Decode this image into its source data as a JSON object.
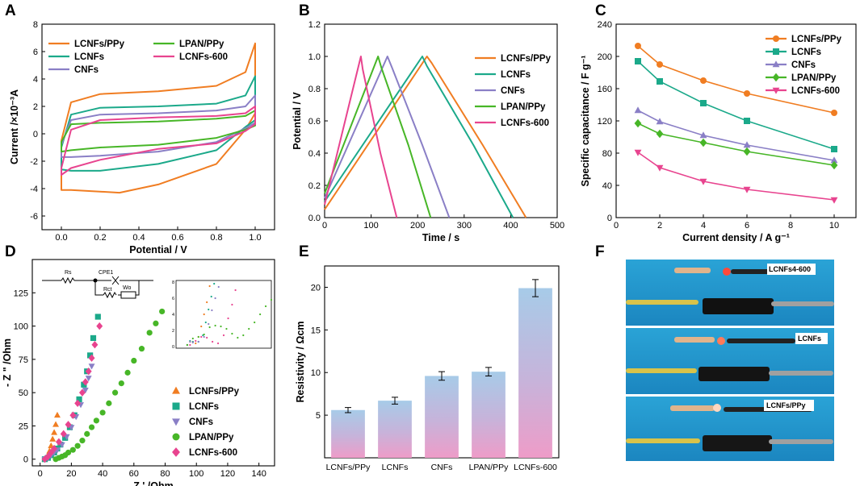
{
  "panels": {
    "A": {
      "label": "A"
    },
    "B": {
      "label": "B"
    },
    "C": {
      "label": "C"
    },
    "D": {
      "label": "D"
    },
    "E": {
      "label": "E"
    },
    "F": {
      "label": "F"
    }
  },
  "colors": {
    "LCNFs/PPy": "#f07d22",
    "LCNFs": "#1ba98a",
    "CNFs": "#8a7fc6",
    "LPAN/PPy": "#47b627",
    "LCNFs-600": "#e8448f"
  },
  "chart_data": [
    {
      "id": "A",
      "type": "line",
      "xlabel": "Potential / V",
      "ylabel": "Current /×10⁻³A",
      "xlim": [
        -0.1,
        1.1
      ],
      "ylim": [
        -7,
        8
      ],
      "xticks": [
        "0.0",
        "0.2",
        "0.4",
        "0.6",
        "0.8",
        "1.0"
      ],
      "yticks": [
        "-6",
        "-4",
        "-2",
        "0",
        "2",
        "4",
        "6",
        "8"
      ],
      "legend": [
        "LCNFs/PPy",
        "LPAN/PPy",
        "LCNFs",
        "LCNFs-600",
        "CNFs"
      ],
      "series": [
        {
          "name": "LCNFs/PPy",
          "upper": [
            [
              0,
              -0.5
            ],
            [
              0.05,
              2.3
            ],
            [
              0.2,
              2.9
            ],
            [
              0.5,
              3.1
            ],
            [
              0.8,
              3.5
            ],
            [
              0.95,
              4.5
            ],
            [
              1.0,
              6.6
            ]
          ],
          "lower": [
            [
              1.0,
              1.5
            ],
            [
              0.95,
              0.3
            ],
            [
              0.8,
              -2.2
            ],
            [
              0.5,
              -3.7
            ],
            [
              0.3,
              -4.3
            ],
            [
              0.05,
              -4.1
            ],
            [
              0,
              -4.1
            ]
          ]
        },
        {
          "name": "LCNFs",
          "upper": [
            [
              0,
              -1.0
            ],
            [
              0.05,
              1.4
            ],
            [
              0.2,
              1.9
            ],
            [
              0.5,
              2.0
            ],
            [
              0.8,
              2.2
            ],
            [
              0.95,
              2.8
            ],
            [
              1.0,
              4.2
            ]
          ],
          "lower": [
            [
              1.0,
              1.0
            ],
            [
              0.95,
              0.5
            ],
            [
              0.8,
              -1.2
            ],
            [
              0.5,
              -2.2
            ],
            [
              0.2,
              -2.7
            ],
            [
              0.05,
              -2.7
            ],
            [
              0,
              -2.6
            ]
          ]
        },
        {
          "name": "CNFs",
          "upper": [
            [
              0,
              -0.8
            ],
            [
              0.05,
              1.0
            ],
            [
              0.2,
              1.4
            ],
            [
              0.5,
              1.5
            ],
            [
              0.8,
              1.7
            ],
            [
              0.95,
              2.0
            ],
            [
              1.0,
              2.8
            ]
          ],
          "lower": [
            [
              1.0,
              0.8
            ],
            [
              0.95,
              0.4
            ],
            [
              0.8,
              -0.6
            ],
            [
              0.5,
              -1.3
            ],
            [
              0.2,
              -1.6
            ],
            [
              0.05,
              -1.7
            ],
            [
              0,
              -1.7
            ]
          ]
        },
        {
          "name": "LPAN/PPy",
          "upper": [
            [
              0,
              -0.6
            ],
            [
              0.05,
              0.7
            ],
            [
              0.2,
              0.8
            ],
            [
              0.5,
              0.9
            ],
            [
              0.8,
              1.1
            ],
            [
              0.95,
              1.3
            ],
            [
              1.0,
              1.7
            ]
          ],
          "lower": [
            [
              1.0,
              0.6
            ],
            [
              0.95,
              0.3
            ],
            [
              0.8,
              -0.3
            ],
            [
              0.5,
              -0.8
            ],
            [
              0.2,
              -1.0
            ],
            [
              0.05,
              -1.2
            ],
            [
              0,
              -1.3
            ]
          ]
        },
        {
          "name": "LCNFs-600",
          "upper": [
            [
              0,
              -2.5
            ],
            [
              0.05,
              0.3
            ],
            [
              0.2,
              1.0
            ],
            [
              0.5,
              1.2
            ],
            [
              0.8,
              1.3
            ],
            [
              0.95,
              1.5
            ],
            [
              1.0,
              2.0
            ]
          ],
          "lower": [
            [
              1.0,
              0.7
            ],
            [
              0.95,
              0.2
            ],
            [
              0.8,
              -0.7
            ],
            [
              0.5,
              -1.1
            ],
            [
              0.2,
              -1.9
            ],
            [
              0.05,
              -2.5
            ],
            [
              0,
              -3.0
            ]
          ]
        }
      ]
    },
    {
      "id": "B",
      "type": "line",
      "xlabel": "Time / s",
      "ylabel": "Potential / V",
      "xlim": [
        0,
        500
      ],
      "ylim": [
        0,
        1.2
      ],
      "xticks": [
        "0",
        "100",
        "200",
        "300",
        "400",
        "500"
      ],
      "yticks": [
        "0.0",
        "0.2",
        "0.4",
        "0.6",
        "0.8",
        "1.0",
        "1.2"
      ],
      "legend": [
        "LCNFs/PPy",
        "LCNFs",
        "CNFs",
        "LPAN/PPy",
        "LCNFs-600"
      ],
      "series": [
        {
          "name": "LCNFs/PPy",
          "points": [
            [
              0,
              0.05
            ],
            [
              220,
              1.0
            ],
            [
              230,
              0.96
            ],
            [
              340,
              0.45
            ],
            [
              433,
              0.0
            ]
          ]
        },
        {
          "name": "LCNFs",
          "points": [
            [
              0,
              0.1
            ],
            [
              210,
              1.0
            ],
            [
              220,
              0.94
            ],
            [
              320,
              0.45
            ],
            [
              405,
              0.0
            ]
          ]
        },
        {
          "name": "CNFs",
          "points": [
            [
              0,
              0.12
            ],
            [
              135,
              1.0
            ],
            [
              145,
              0.93
            ],
            [
              210,
              0.45
            ],
            [
              268,
              0.0
            ]
          ]
        },
        {
          "name": "LPAN/PPy",
          "points": [
            [
              0,
              0.15
            ],
            [
              115,
              1.0
            ],
            [
              122,
              0.93
            ],
            [
              180,
              0.45
            ],
            [
              228,
              0.0
            ]
          ]
        },
        {
          "name": "LCNFs-600",
          "points": [
            [
              0,
              0.08
            ],
            [
              78,
              1.0
            ],
            [
              82,
              0.92
            ],
            [
              120,
              0.4
            ],
            [
              155,
              0.0
            ]
          ]
        }
      ]
    },
    {
      "id": "C",
      "type": "line",
      "xlabel": "Current density / A g⁻¹",
      "ylabel": "Specific capacitance / F g⁻¹",
      "xlim": [
        0,
        11
      ],
      "ylim": [
        0,
        240
      ],
      "xticks": [
        "0",
        "2",
        "4",
        "6",
        "8",
        "10"
      ],
      "yticks": [
        "0",
        "40",
        "80",
        "120",
        "160",
        "200",
        "240"
      ],
      "x": [
        1,
        2,
        4,
        6,
        10
      ],
      "legend": [
        "LCNFs/PPy",
        "LCNFs",
        "CNFs",
        "LPAN/PPy",
        "LCNFs-600"
      ],
      "series": [
        {
          "name": "LCNFs/PPy",
          "marker": "circle",
          "values": [
            213,
            190,
            170,
            154,
            130
          ]
        },
        {
          "name": "LCNFs",
          "marker": "square",
          "values": [
            194,
            169,
            142,
            120,
            85
          ]
        },
        {
          "name": "CNFs",
          "marker": "triangle-up",
          "values": [
            133,
            119,
            102,
            90,
            71
          ]
        },
        {
          "name": "LPAN/PPy",
          "marker": "diamond",
          "values": [
            117,
            104,
            93,
            82,
            65
          ]
        },
        {
          "name": "LCNFs-600",
          "marker": "triangle-down",
          "values": [
            81,
            62,
            45,
            35,
            22
          ]
        }
      ]
    },
    {
      "id": "D",
      "type": "scatter",
      "xlabel": "Z ' /Ohm",
      "ylabel": "- Z \" /Ohm",
      "xlim": [
        -5,
        150
      ],
      "ylim": [
        -5,
        150
      ],
      "xticks": [
        "0",
        "20",
        "40",
        "60",
        "80",
        "100",
        "120",
        "140"
      ],
      "yticks": [
        "0",
        "25",
        "50",
        "75",
        "100",
        "125"
      ],
      "legend": [
        "LCNFs/PPy",
        "LCNFs",
        "CNFs",
        "LPAN/PPy",
        "LCNFs-600"
      ],
      "circuit_labels": [
        "Rs",
        "CPE1",
        "Rct",
        "Wo"
      ],
      "inset_ticks": [
        "0",
        "2",
        "4",
        "6",
        "8"
      ],
      "series": [
        {
          "name": "LCNFs/PPy",
          "marker": "triangle-up",
          "points": [
            [
              3,
              0
            ],
            [
              4,
              1
            ],
            [
              5,
              3
            ],
            [
              6,
              6
            ],
            [
              7,
              10
            ],
            [
              8,
              15
            ],
            [
              9,
              20
            ],
            [
              10,
              26
            ],
            [
              11,
              33
            ]
          ]
        },
        {
          "name": "LCNFs",
          "marker": "square",
          "points": [
            [
              3,
              0
            ],
            [
              5,
              1
            ],
            [
              7,
              3
            ],
            [
              9,
              5
            ],
            [
              11,
              8
            ],
            [
              13,
              11
            ],
            [
              16,
              16
            ],
            [
              19,
              24
            ],
            [
              22,
              33
            ],
            [
              25,
              45
            ],
            [
              28,
              56
            ],
            [
              30,
              66
            ],
            [
              32,
              78
            ],
            [
              34,
              91
            ],
            [
              37,
              107
            ]
          ]
        },
        {
          "name": "CNFs",
          "marker": "triangle-down",
          "points": [
            [
              3,
              0
            ],
            [
              5,
              1
            ],
            [
              7,
              3
            ],
            [
              9,
              5
            ],
            [
              11,
              7
            ],
            [
              14,
              11
            ],
            [
              17,
              17
            ],
            [
              20,
              24
            ],
            [
              23,
              32
            ],
            [
              26,
              41
            ],
            [
              29,
              52
            ],
            [
              31,
              61
            ],
            [
              33,
              70
            ]
          ]
        },
        {
          "name": "LPAN/PPy",
          "marker": "circle",
          "points": [
            [
              10,
              0
            ],
            [
              12,
              1
            ],
            [
              14,
              2
            ],
            [
              16,
              3
            ],
            [
              18,
              5
            ],
            [
              21,
              7
            ],
            [
              24,
              10
            ],
            [
              27,
              14
            ],
            [
              30,
              19
            ],
            [
              33,
              24
            ],
            [
              36,
              29
            ],
            [
              40,
              35
            ],
            [
              44,
              42
            ],
            [
              48,
              50
            ],
            [
              52,
              57
            ],
            [
              56,
              65
            ],
            [
              60,
              74
            ],
            [
              65,
              83
            ],
            [
              70,
              95
            ],
            [
              74,
              102
            ],
            [
              78,
              111
            ]
          ]
        },
        {
          "name": "LCNFs-600",
          "marker": "diamond",
          "points": [
            [
              3,
              0
            ],
            [
              5,
              2
            ],
            [
              7,
              5
            ],
            [
              9,
              8
            ],
            [
              12,
              13
            ],
            [
              15,
              19
            ],
            [
              18,
              26
            ],
            [
              21,
              33
            ],
            [
              24,
              42
            ],
            [
              27,
              50
            ],
            [
              29,
              58
            ],
            [
              31,
              66
            ],
            [
              33,
              76
            ],
            [
              35,
              86
            ],
            [
              38,
              100
            ]
          ]
        }
      ]
    },
    {
      "id": "E",
      "type": "bar",
      "xlabel": "",
      "ylabel": "Resistivity / Ωcm",
      "ylim": [
        0,
        22.5
      ],
      "yticks": [
        "5",
        "10",
        "15",
        "20"
      ],
      "categories": [
        "LCNFs/PPy",
        "LCNFs",
        "CNFs",
        "LPAN/PPy",
        "LCNFs-600"
      ],
      "values": [
        5.6,
        6.7,
        9.6,
        10.1,
        19.9
      ],
      "errors": [
        0.3,
        0.4,
        0.5,
        0.5,
        1.0
      ]
    }
  ],
  "photos": {
    "captions": [
      "LCNFs4-600",
      "LCNFs",
      "LCNFs/PPy"
    ]
  }
}
